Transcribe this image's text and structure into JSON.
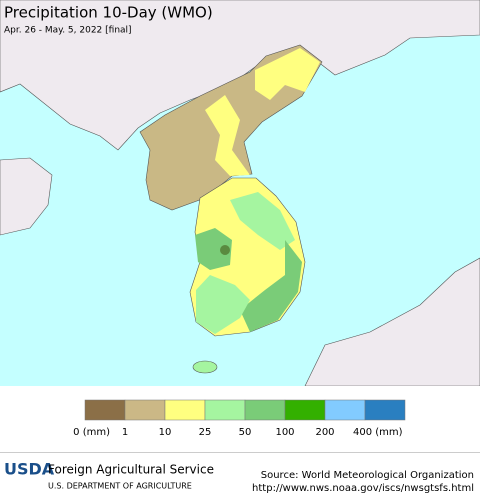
{
  "header": {
    "title": "Precipitation 10-Day (WMO)",
    "subtitle": "Apr. 26 - May. 5, 2022 [final]"
  },
  "legend": {
    "colors": [
      "#8b6f47",
      "#cbb886",
      "#ffff80",
      "#a5f5a0",
      "#7acc78",
      "#33b000",
      "#82cbff",
      "#2a7fc0"
    ],
    "labels": [
      "0 (mm)",
      "1",
      "10",
      "25",
      "50",
      "100",
      "200",
      "400 (mm)"
    ]
  },
  "footer": {
    "logo": "USDA",
    "agency": "Foreign Agricultural Service",
    "department": "U.S. DEPARTMENT OF AGRICULTURE",
    "source": "Source: World Meteorological Organization",
    "url": "http://www.nws.noaa.gov/iscs/nwsgtsfs.html"
  }
}
